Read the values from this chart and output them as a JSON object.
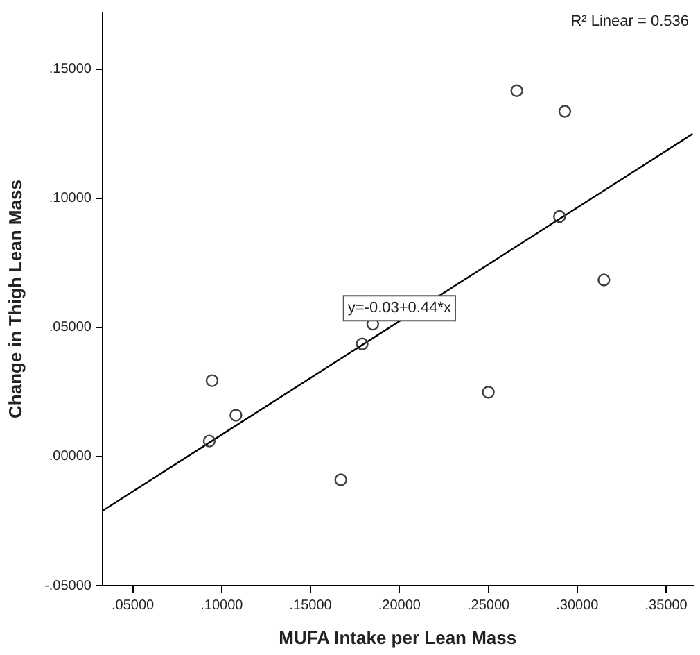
{
  "chart_data": {
    "type": "scatter",
    "xlabel": "MUFA Intake per Lean Mass",
    "ylabel": "Change in Thigh Lean Mass",
    "series": [
      {
        "color": "#404040",
        "marker": "circle",
        "x": [
          0.093,
          0.0946,
          0.108,
          0.167,
          0.179,
          0.185,
          0.25,
          0.266,
          0.293,
          0.29,
          0.315
        ],
        "values": [
          0.006,
          0.0294,
          0.016,
          -0.009,
          0.0436,
          0.0513,
          0.0249,
          0.1417,
          0.1337,
          0.093,
          0.0684
        ]
      },
      {
        "type": "line",
        "color": "#000000",
        "marker": "none",
        "x": [
          0.033,
          0.365
        ],
        "values": [
          -0.021,
          0.125
        ]
      }
    ],
    "xlim": [
      0.033,
      0.365
    ],
    "ylim": [
      -0.05,
      0.172
    ],
    "xticks": [
      {
        "value": 0.05,
        "label": ".05000"
      },
      {
        "value": 0.1,
        "label": ".10000"
      },
      {
        "value": 0.15,
        "label": ".15000"
      },
      {
        "value": 0.2,
        "label": ".20000"
      },
      {
        "value": 0.25,
        "label": ".25000"
      },
      {
        "value": 0.3,
        "label": ".30000"
      },
      {
        "value": 0.35,
        "label": ".35000"
      }
    ],
    "yticks": [
      {
        "value": -0.05,
        "label": "-.05000"
      },
      {
        "value": 0,
        "label": ".00000"
      },
      {
        "value": 0.05,
        "label": ".05000"
      },
      {
        "value": 0.1,
        "label": ".10000"
      },
      {
        "value": 0.15,
        "label": ".15000"
      }
    ],
    "grid": false,
    "legend": false,
    "annotations": [
      "R² Linear = 0.536",
      "y=-0.03+0.44*x"
    ]
  }
}
